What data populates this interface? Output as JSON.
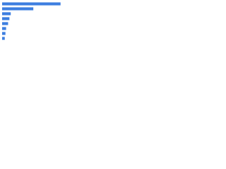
{
  "chart_data": {
    "type": "bar",
    "orientation": "horizontal",
    "values": [
      88,
      47,
      13,
      11,
      9,
      6,
      5,
      4
    ],
    "color": "#3d7ee0",
    "xlim": [
      0,
      100
    ]
  }
}
